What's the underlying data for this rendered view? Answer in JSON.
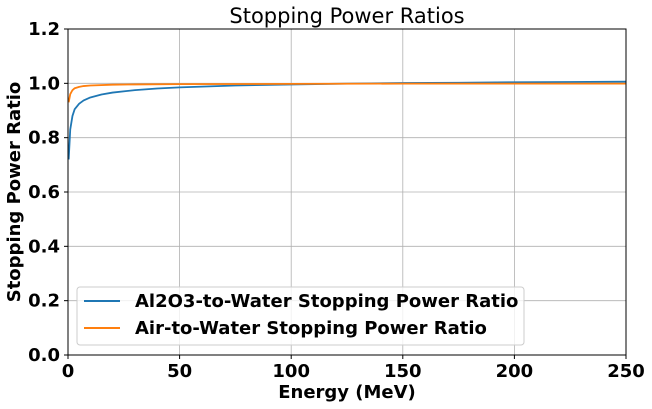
{
  "chart_data": {
    "type": "line",
    "title": "Stopping Power Ratios",
    "xlabel": "Energy (MeV)",
    "ylabel": "Stopping Power Ratio",
    "xlim": [
      0,
      250
    ],
    "ylim": [
      0.0,
      1.2
    ],
    "x_ticks": [
      "0",
      "50",
      "100",
      "150",
      "200",
      "250"
    ],
    "y_ticks": [
      "0.0",
      "0.2",
      "0.4",
      "0.6",
      "0.8",
      "1.0",
      "1.2"
    ],
    "grid": true,
    "legend_position": "lower-left",
    "series": [
      {
        "name": "Al2O3-to-Water Stopping Power Ratio",
        "color": "#1f77b4",
        "x": [
          0.3,
          1,
          2,
          3,
          5,
          7,
          10,
          15,
          20,
          30,
          40,
          50,
          75,
          100,
          125,
          150,
          175,
          200,
          225,
          250
        ],
        "y": [
          0.72,
          0.83,
          0.88,
          0.905,
          0.925,
          0.937,
          0.948,
          0.959,
          0.966,
          0.975,
          0.981,
          0.985,
          0.992,
          0.996,
          0.999,
          1.001,
          1.002,
          1.004,
          1.005,
          1.006
        ]
      },
      {
        "name": "Air-to-Water Stopping Power Ratio",
        "color": "#ff7f0e",
        "x": [
          0.3,
          1,
          2,
          3,
          5,
          7,
          10,
          20,
          30,
          50,
          100,
          150,
          200,
          250
        ],
        "y": [
          0.93,
          0.96,
          0.975,
          0.982,
          0.987,
          0.99,
          0.992,
          0.995,
          0.996,
          0.997,
          0.998,
          0.999,
          0.999,
          0.999
        ]
      }
    ]
  }
}
